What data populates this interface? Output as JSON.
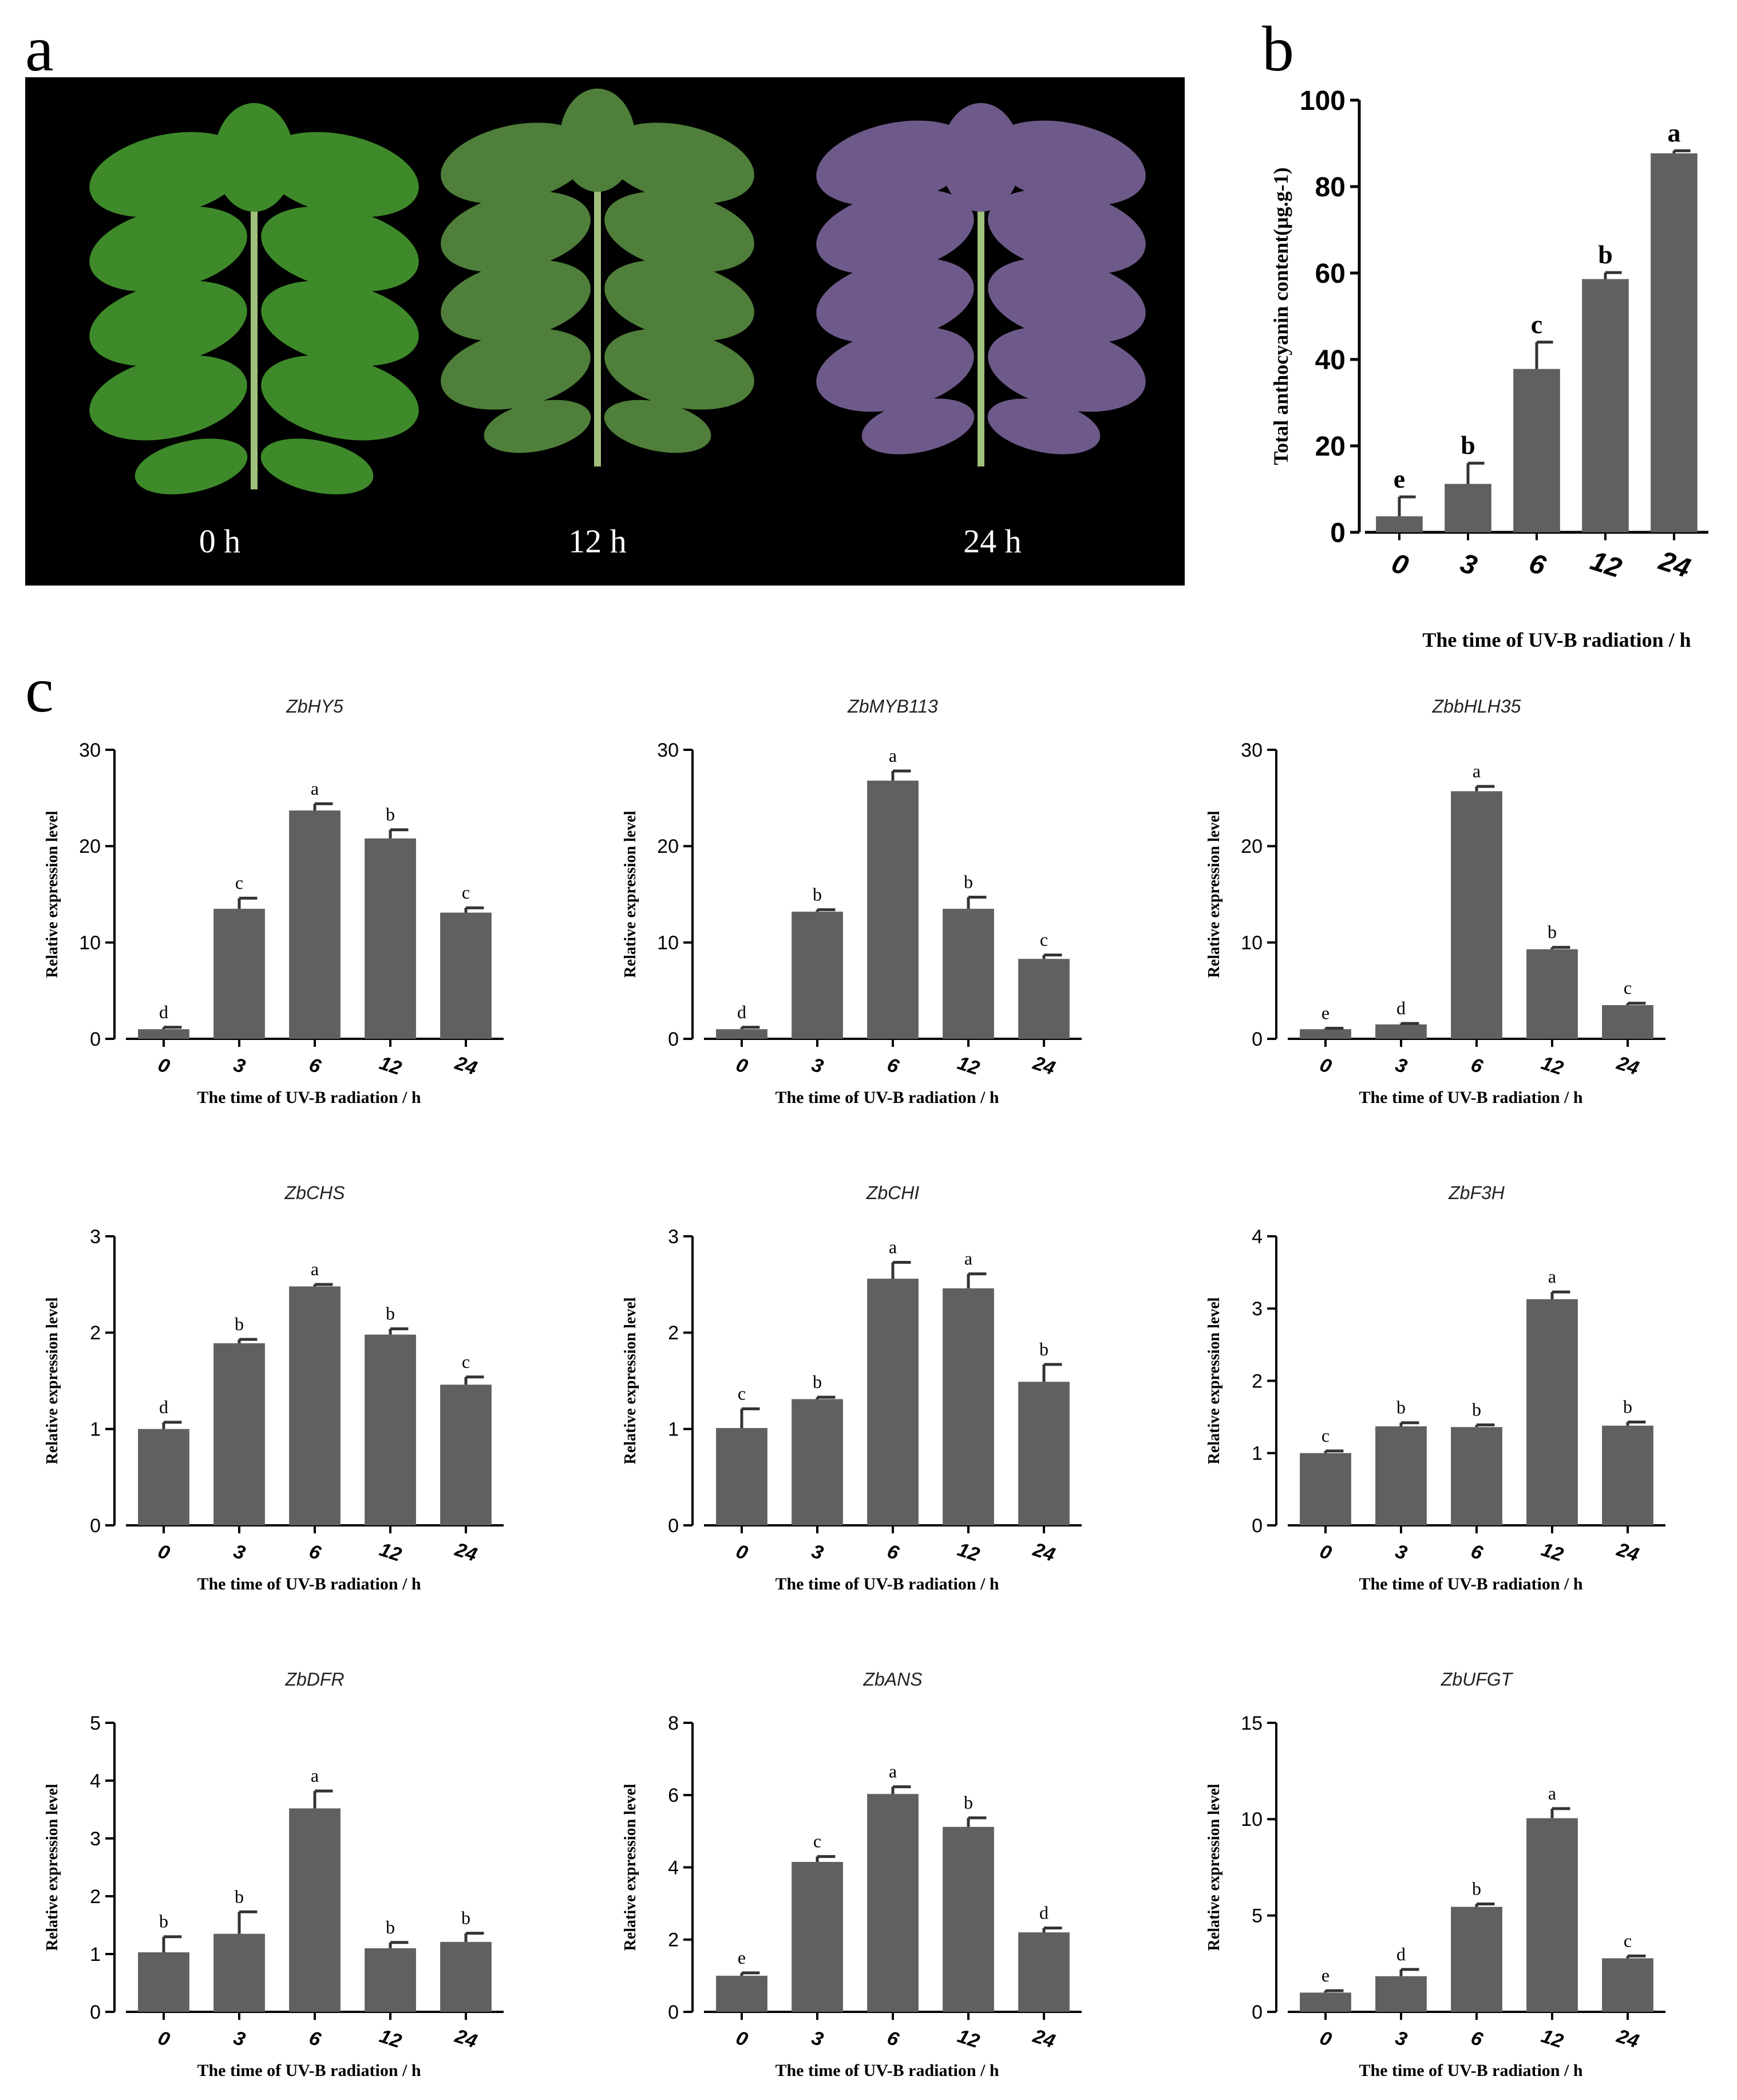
{
  "panels": {
    "a": "a",
    "b": "b",
    "c": "c"
  },
  "photo": {
    "leaves": [
      {
        "label": "0 h",
        "color": "#3e8a2a"
      },
      {
        "label": "12 h",
        "color": "#4f7f3a"
      },
      {
        "label": "24 h",
        "color": "#6e5a8a"
      }
    ]
  },
  "bar_color": "#606060",
  "chart_data": [
    {
      "id": "b",
      "type": "bar",
      "title": "",
      "xlabel": "The time of  UV-B radiation / h",
      "ylabel": "Total anthocyanin content(μg.g-1)",
      "categories": [
        "0",
        "3",
        "6",
        "12",
        "24"
      ],
      "values": [
        3.7,
        11.2,
        37.8,
        58.6,
        87.7
      ],
      "errors": [
        4.5,
        4.8,
        6.2,
        1.5,
        0.6
      ],
      "letters": [
        "e",
        "b",
        "c",
        "b",
        "a"
      ],
      "ylim": [
        0,
        100
      ],
      "yticks": [
        0,
        20,
        40,
        60,
        80,
        100
      ]
    },
    {
      "id": "ZbHY5",
      "type": "bar",
      "title": "ZbHY5",
      "xlabel": "The time of  UV-B radiation / h",
      "ylabel": "Relative expression level",
      "categories": [
        "0",
        "3",
        "6",
        "12",
        "24"
      ],
      "values": [
        1.0,
        13.5,
        23.7,
        20.8,
        13.1
      ],
      "errors": [
        0.2,
        1.1,
        0.7,
        0.9,
        0.5
      ],
      "letters": [
        "d",
        "c",
        "a",
        "b",
        "c"
      ],
      "ylim": [
        0,
        30
      ],
      "yticks": [
        0,
        10,
        20,
        30
      ]
    },
    {
      "id": "ZbMYB113",
      "type": "bar",
      "title": "ZbMYB113",
      "xlabel": "The time of  UV-B radiation / h",
      "ylabel": "Relative expression level",
      "categories": [
        "0",
        "3",
        "6",
        "12",
        "24"
      ],
      "values": [
        1.0,
        13.2,
        26.8,
        13.5,
        8.3
      ],
      "errors": [
        0.2,
        0.2,
        1.0,
        1.2,
        0.4
      ],
      "letters": [
        "d",
        "b",
        "a",
        "b",
        "c"
      ],
      "ylim": [
        0,
        30
      ],
      "yticks": [
        0,
        10,
        20,
        30
      ]
    },
    {
      "id": "ZbbHLH35",
      "type": "bar",
      "title": "ZbbHLH35",
      "xlabel": "The time of  UV-B radiation / h",
      "ylabel": "Relative expression level",
      "categories": [
        "0",
        "3",
        "6",
        "12",
        "24"
      ],
      "values": [
        1.0,
        1.5,
        25.7,
        9.3,
        3.5
      ],
      "errors": [
        0.1,
        0.1,
        0.5,
        0.2,
        0.2
      ],
      "letters": [
        "e",
        "d",
        "a",
        "b",
        "c"
      ],
      "ylim": [
        0,
        30
      ],
      "yticks": [
        0,
        10,
        20,
        30
      ]
    },
    {
      "id": "ZbCHS",
      "type": "bar",
      "title": "ZbCHS",
      "xlabel": "The time of  UV-B radiation / h",
      "ylabel": "Relative expression level",
      "categories": [
        "0",
        "3",
        "6",
        "12",
        "24"
      ],
      "values": [
        1.0,
        1.89,
        2.48,
        1.98,
        1.46
      ],
      "errors": [
        0.07,
        0.04,
        0.02,
        0.06,
        0.08
      ],
      "letters": [
        "d",
        "b",
        "a",
        "b",
        "c"
      ],
      "ylim": [
        0,
        3
      ],
      "yticks": [
        0,
        1,
        2,
        3
      ]
    },
    {
      "id": "ZbCHI",
      "type": "bar",
      "title": "ZbCHI",
      "xlabel": "The time of  UV-B radiation / h",
      "ylabel": "Relative expression level",
      "categories": [
        "0",
        "3",
        "6",
        "12",
        "24"
      ],
      "values": [
        1.01,
        1.31,
        2.56,
        2.46,
        1.49
      ],
      "errors": [
        0.2,
        0.02,
        0.17,
        0.15,
        0.18
      ],
      "letters": [
        "c",
        "b",
        "a",
        "a",
        "b"
      ],
      "ylim": [
        0,
        3
      ],
      "yticks": [
        0,
        1,
        2,
        3
      ]
    },
    {
      "id": "ZbF3H",
      "type": "bar",
      "title": "ZbF3H",
      "xlabel": "The time of  UV-B radiation / h",
      "ylabel": "Relative expression level",
      "categories": [
        "0",
        "3",
        "6",
        "12",
        "24"
      ],
      "values": [
        1.0,
        1.37,
        1.36,
        3.13,
        1.38
      ],
      "errors": [
        0.03,
        0.05,
        0.03,
        0.1,
        0.05
      ],
      "letters": [
        "c",
        "b",
        "b",
        "a",
        "b"
      ],
      "ylim": [
        0,
        4
      ],
      "yticks": [
        0,
        1,
        2,
        3,
        4
      ]
    },
    {
      "id": "ZbDFR",
      "type": "bar",
      "title": "ZbDFR",
      "xlabel": "The time of  UV-B radiation / h",
      "ylabel": "Relative expression level",
      "categories": [
        "0",
        "3",
        "6",
        "12",
        "24"
      ],
      "values": [
        1.03,
        1.35,
        3.52,
        1.1,
        1.21
      ],
      "errors": [
        0.27,
        0.38,
        0.3,
        0.1,
        0.15
      ],
      "letters": [
        "b",
        "b",
        "a",
        "b",
        "b"
      ],
      "ylim": [
        0,
        5
      ],
      "yticks": [
        0,
        1,
        2,
        3,
        4,
        5
      ]
    },
    {
      "id": "ZbANS",
      "type": "bar",
      "title": "ZbANS",
      "xlabel": "The time of  UV-B radiation / h",
      "ylabel": "Relative expression level",
      "categories": [
        "0",
        "3",
        "6",
        "12",
        "24"
      ],
      "values": [
        1.0,
        4.15,
        6.03,
        5.12,
        2.2
      ],
      "errors": [
        0.08,
        0.15,
        0.2,
        0.25,
        0.12
      ],
      "letters": [
        "e",
        "c",
        "a",
        "b",
        "d"
      ],
      "ylim": [
        0,
        8
      ],
      "yticks": [
        0,
        2,
        4,
        6,
        8
      ]
    },
    {
      "id": "ZbUFGT",
      "type": "bar",
      "title": "ZbUFGT",
      "xlabel": "The time of  UV-B radiation / h",
      "ylabel": "Relative expression level",
      "categories": [
        "0",
        "3",
        "6",
        "12",
        "24"
      ],
      "values": [
        1.0,
        1.85,
        5.45,
        10.05,
        2.78
      ],
      "errors": [
        0.1,
        0.35,
        0.15,
        0.5,
        0.12
      ],
      "letters": [
        "e",
        "d",
        "b",
        "a",
        "c"
      ],
      "ylim": [
        0,
        15
      ],
      "yticks": [
        0,
        5,
        10,
        15
      ]
    }
  ]
}
